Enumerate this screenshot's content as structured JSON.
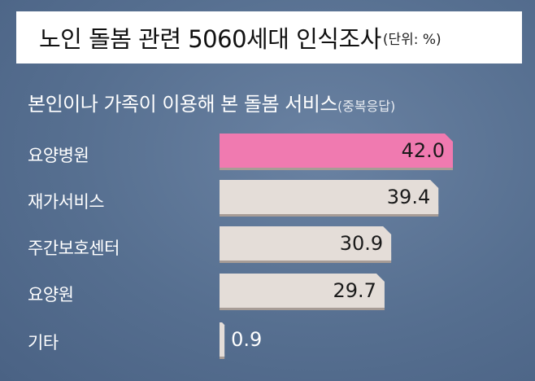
{
  "header": {
    "title": "노인 돌봄 관련 5060세대 인식조사",
    "unit": "(단위: %)"
  },
  "subheader": {
    "title": "본인이나 가족이 이용해 본 돌봄 서비스",
    "note": "(중복응답)"
  },
  "colors": {
    "highlight_bar": "#f07ab0",
    "bar": "#e4ddd8",
    "bar_shadow": "#a79c96",
    "background": "#566f90",
    "value_text_on_bar": "#1a1a1a",
    "value_text_outside": "#ffffff"
  },
  "chart_data": {
    "type": "bar",
    "orientation": "horizontal",
    "categories": [
      "요양병원",
      "재가서비스",
      "주간보호센터",
      "요양원",
      "기타"
    ],
    "values": [
      42.0,
      39.4,
      30.9,
      29.7,
      0.9
    ],
    "value_labels": [
      "42.0",
      "39.4",
      "30.9",
      "29.7",
      "0.9"
    ],
    "highlight_index": 0,
    "xlim": [
      0,
      42.0
    ],
    "grid": false,
    "legend": "none"
  }
}
